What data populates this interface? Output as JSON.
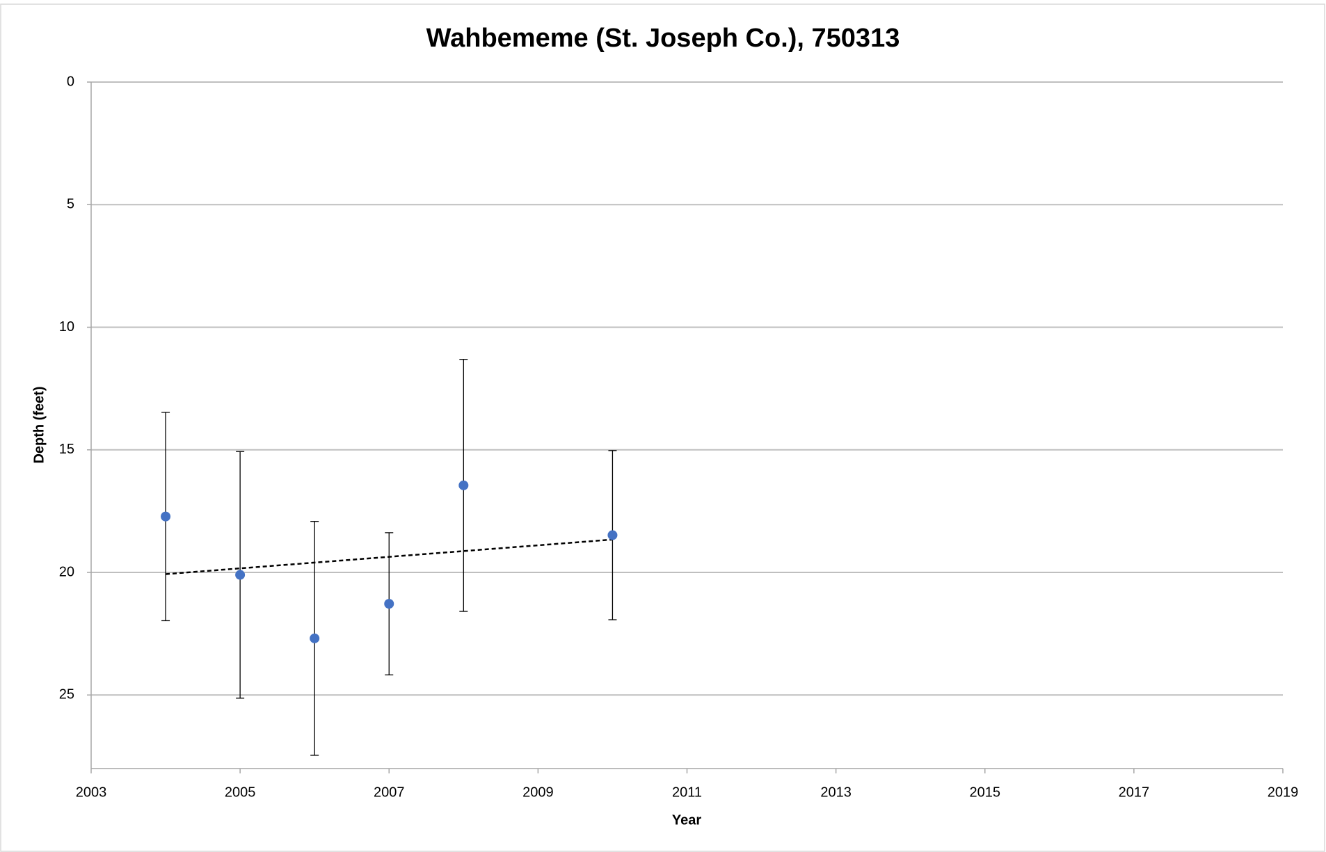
{
  "chart_data": {
    "type": "scatter",
    "title": "Wahbememe (St. Joseph Co.), 750313",
    "x_label": "Year",
    "y_label": "Depth (feet)",
    "series": [
      {
        "x": [
          2004,
          2005,
          2006,
          2007,
          2008,
          2010
        ],
        "values": [
          17.72,
          20.1,
          22.69,
          21.28,
          16.45,
          18.48
        ],
        "errors": [
          4.25,
          5.03,
          4.77,
          2.9,
          5.14,
          3.45
        ],
        "color": "#4472c4"
      }
    ],
    "trendline": {
      "x": [
        2004,
        2010
      ],
      "values": [
        20.07,
        18.66
      ],
      "color": "#000000"
    },
    "xlim": [
      2003,
      2019
    ],
    "xticks": [
      2003,
      2005,
      2007,
      2009,
      2011,
      2013,
      2015,
      2017,
      2019
    ],
    "ylim": [
      0,
      28
    ],
    "yticks": [
      0,
      5,
      10,
      15,
      20,
      25
    ],
    "y_reversed": true,
    "grid": true
  }
}
